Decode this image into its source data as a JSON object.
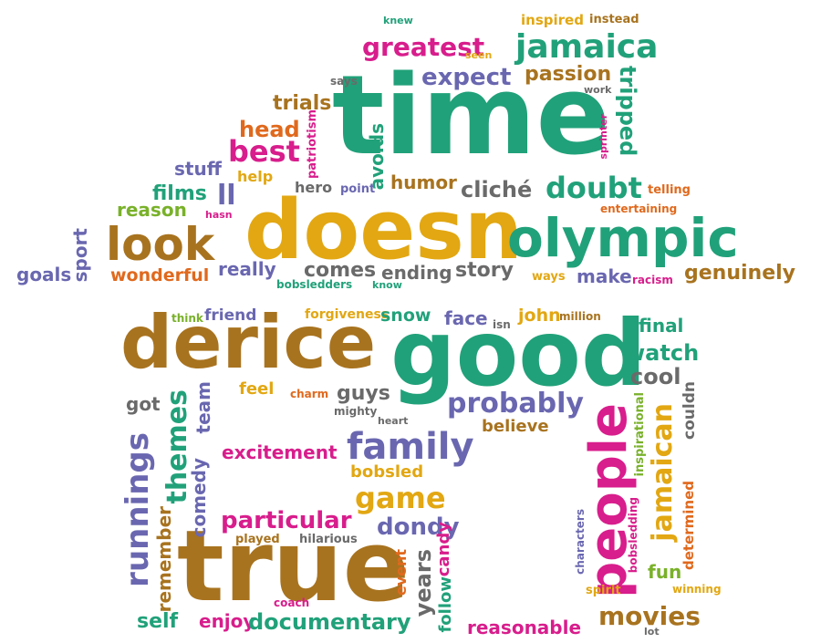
{
  "palette": {
    "green": "#21a179",
    "gold": "#e2a712",
    "brown": "#a8731f",
    "pink": "#d81d8c",
    "purple": "#6a67b0",
    "orange": "#e0691d",
    "lime": "#79b12a",
    "gray": "#6a6a6a"
  },
  "words": [
    "time",
    "doesn",
    "olympic",
    "look",
    "derice",
    "good",
    "true",
    "people",
    "jamaica",
    "greatest",
    "expect",
    "passion",
    "tripped",
    "trials",
    "head",
    "best",
    "stuff",
    "films",
    "reason",
    "ll",
    "sport",
    "goals",
    "wonderful",
    "really",
    "comes",
    "ending",
    "story",
    "make",
    "genuinely",
    "cliché",
    "doubt",
    "humor",
    "hero",
    "point",
    "avoids",
    "patriotism",
    "help",
    "hasn",
    "telling",
    "entertaining",
    "knew",
    "inspired",
    "instead",
    "seen",
    "says",
    "work",
    "sprinter",
    "ways",
    "racism",
    "bobsledders",
    "know",
    "think",
    "friend",
    "forgiveness",
    "snow",
    "face",
    "isn",
    "john",
    "million",
    "final",
    "watch",
    "cool",
    "probably",
    "believe",
    "guys",
    "charm",
    "feel",
    "mighty",
    "heart",
    "got",
    "themes",
    "team",
    "comedy",
    "runnings",
    "remember",
    "excitement",
    "family",
    "bobsled",
    "game",
    "particular",
    "dondy",
    "candy",
    "years",
    "follow",
    "event",
    "played",
    "hilarious",
    "coach",
    "enjoy",
    "self",
    "documentary",
    "reasonable",
    "movies",
    "lot",
    "spirit",
    "fun",
    "winning",
    "characters",
    "bobsledding",
    "inspirational",
    "determined",
    "jamaican",
    "couldn"
  ]
}
